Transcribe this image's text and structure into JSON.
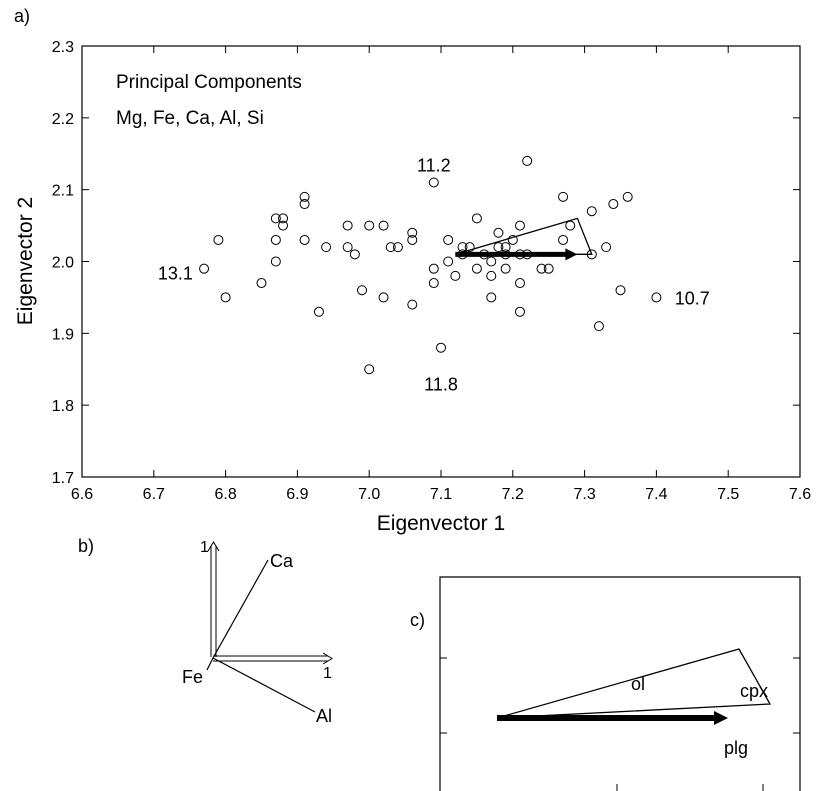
{
  "panels": {
    "a": "a)",
    "b": "b)",
    "c": "c)"
  },
  "chart_data": {
    "type": "scatter",
    "title": "Principal Components",
    "subtitle": "Mg, Fe, Ca, Al, Si",
    "xlabel": "Eigenvector 1",
    "ylabel": "Eigenvector 2",
    "xlim": [
      6.6,
      7.6
    ],
    "ylim": [
      1.7,
      2.3
    ],
    "xticks": [
      "6.6",
      "6.7",
      "6.8",
      "6.9",
      "7.0",
      "7.1",
      "7.2",
      "7.3",
      "7.4",
      "7.5",
      "7.6"
    ],
    "yticks": [
      "1.7",
      "1.8",
      "1.9",
      "2.0",
      "2.1",
      "2.2",
      "2.3"
    ],
    "grid": false,
    "points": [
      [
        6.77,
        1.99
      ],
      [
        6.79,
        2.03
      ],
      [
        6.8,
        1.95
      ],
      [
        6.85,
        1.97
      ],
      [
        6.87,
        2.06
      ],
      [
        6.87,
        2.03
      ],
      [
        6.87,
        2.0
      ],
      [
        6.88,
        2.06
      ],
      [
        6.88,
        2.05
      ],
      [
        6.91,
        2.09
      ],
      [
        6.91,
        2.08
      ],
      [
        6.91,
        2.03
      ],
      [
        6.93,
        1.93
      ],
      [
        6.94,
        2.02
      ],
      [
        6.97,
        2.05
      ],
      [
        6.97,
        2.02
      ],
      [
        6.98,
        2.01
      ],
      [
        6.99,
        1.96
      ],
      [
        7.0,
        2.05
      ],
      [
        7.0,
        1.85
      ],
      [
        7.02,
        2.05
      ],
      [
        7.02,
        1.95
      ],
      [
        7.03,
        2.02
      ],
      [
        7.04,
        2.02
      ],
      [
        7.06,
        2.04
      ],
      [
        7.06,
        2.03
      ],
      [
        7.06,
        1.94
      ],
      [
        7.09,
        2.11
      ],
      [
        7.09,
        1.99
      ],
      [
        7.09,
        1.97
      ],
      [
        7.1,
        1.88
      ],
      [
        7.11,
        2.03
      ],
      [
        7.11,
        2.0
      ],
      [
        7.12,
        1.98
      ],
      [
        7.13,
        2.02
      ],
      [
        7.13,
        2.01
      ],
      [
        7.14,
        2.02
      ],
      [
        7.15,
        2.06
      ],
      [
        7.15,
        1.99
      ],
      [
        7.16,
        2.01
      ],
      [
        7.17,
        2.0
      ],
      [
        7.17,
        1.98
      ],
      [
        7.17,
        1.95
      ],
      [
        7.18,
        2.04
      ],
      [
        7.18,
        2.02
      ],
      [
        7.19,
        2.02
      ],
      [
        7.19,
        2.01
      ],
      [
        7.19,
        1.99
      ],
      [
        7.2,
        2.03
      ],
      [
        7.21,
        2.05
      ],
      [
        7.21,
        2.01
      ],
      [
        7.21,
        1.97
      ],
      [
        7.21,
        1.93
      ],
      [
        7.22,
        2.14
      ],
      [
        7.22,
        2.01
      ],
      [
        7.24,
        1.99
      ],
      [
        7.25,
        1.99
      ],
      [
        7.27,
        2.09
      ],
      [
        7.27,
        2.03
      ],
      [
        7.28,
        2.05
      ],
      [
        7.31,
        2.07
      ],
      [
        7.31,
        2.01
      ],
      [
        7.32,
        1.91
      ],
      [
        7.33,
        2.02
      ],
      [
        7.34,
        2.08
      ],
      [
        7.35,
        1.96
      ],
      [
        7.36,
        2.09
      ],
      [
        7.4,
        1.95
      ]
    ],
    "annotations": [
      {
        "text": "13.1",
        "x": 6.73,
        "y": 1.985
      },
      {
        "text": "11.2",
        "x": 7.09,
        "y": 2.135
      },
      {
        "text": "11.8",
        "x": 7.1,
        "y": 1.83
      },
      {
        "text": "10.7",
        "x": 7.45,
        "y": 1.95
      }
    ],
    "mixing_triangle": [
      [
        7.12,
        2.01
      ],
      [
        7.29,
        2.06
      ],
      [
        7.31,
        2.01
      ]
    ],
    "arrow": {
      "from": [
        7.12,
        2.01
      ],
      "to": [
        7.29,
        2.01
      ]
    },
    "loadings": {
      "axis_tick": "1",
      "vectors": [
        {
          "name": "Ca",
          "x": 0.47,
          "y": 0.86
        },
        {
          "name": "Fe",
          "x": 0.0,
          "y": 0.0
        },
        {
          "name": "Al",
          "x": 0.88,
          "y": -0.47
        }
      ]
    },
    "inset": {
      "labels": {
        "ol": "ol",
        "cpx": "cpx",
        "plg": "plg"
      }
    }
  }
}
